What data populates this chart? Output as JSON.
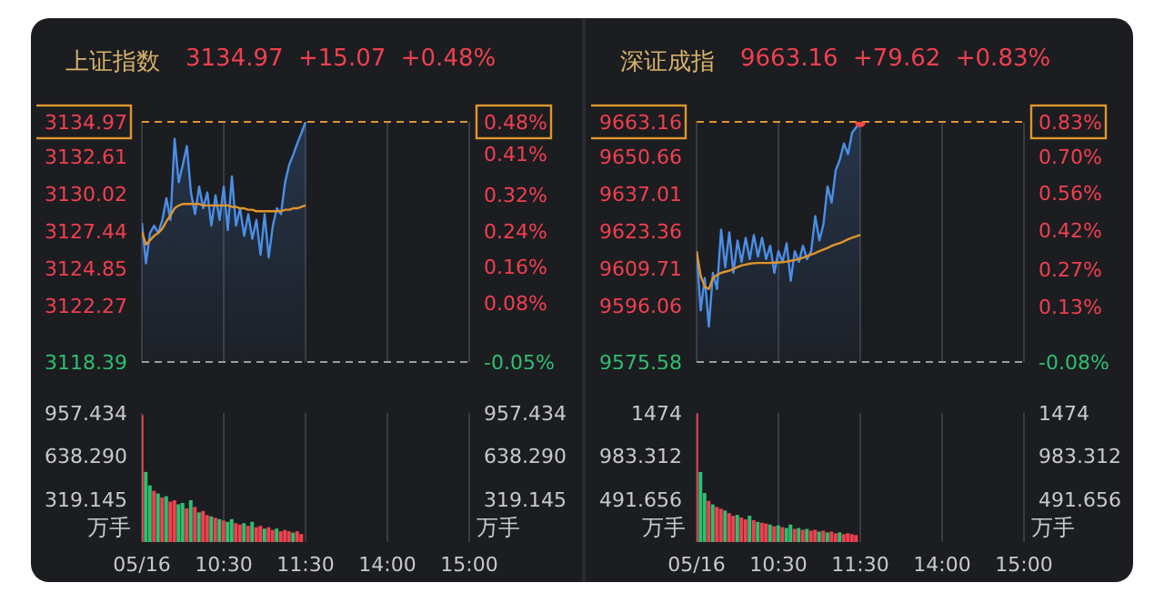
{
  "chart_data": [
    {
      "type": "line",
      "title": "上证指数",
      "subtitle": "3134.97  +15.07  +0.48%",
      "tick_labels": "y",
      "grid": "x",
      "categories": [
        "05/16",
        null,
        null,
        null,
        null,
        null,
        null,
        null,
        null,
        null,
        null,
        null,
        null,
        null,
        null,
        null,
        null,
        null,
        null,
        null,
        "10:30",
        null,
        null,
        null,
        null,
        null,
        null,
        null,
        null,
        null,
        null,
        null,
        null,
        null,
        null,
        null,
        null,
        null,
        null,
        null,
        "11:30",
        null,
        null,
        null,
        null,
        null,
        null,
        null,
        null,
        null,
        null,
        null,
        null,
        null,
        null,
        null,
        null,
        null,
        null,
        null,
        "14:00",
        null,
        null,
        null,
        null,
        null,
        null,
        null,
        null,
        null,
        null,
        null,
        null,
        null,
        null,
        null,
        null,
        null,
        null,
        null,
        "15:00"
      ],
      "ylim": [
        3118.39,
        3134.97
      ],
      "yticks": [
        3134.97,
        3132.61,
        3130.02,
        3127.44,
        3124.85,
        3122.27,
        3118.39
      ],
      "y2lim": [
        -0.05,
        0.48
      ],
      "y2ticks": [
        {
          "value": 0.48,
          "label": "0.48%"
        },
        {
          "value": 0.41,
          "label": "0.41%"
        },
        {
          "value": 0.32,
          "label": "0.32%"
        },
        {
          "value": 0.24,
          "label": "0.24%"
        },
        {
          "value": 0.16,
          "label": "0.16%"
        },
        {
          "value": 0.08,
          "label": "0.08%"
        },
        {
          "value": -0.05,
          "label": "-0.05%"
        }
      ],
      "ref_lines": [
        {
          "axis": "y",
          "value": 3134.97,
          "color": "#e0952e",
          "line_style": "dashed"
        },
        {
          "axis": "y",
          "value": 3118.39,
          "color": "#9a9ca3",
          "line_style": "dashed"
        }
      ],
      "series": [
        {
          "type": "area",
          "color": "#4a8fe7",
          "values": [
            3128.0,
            3125.2,
            3127.3,
            3127.8,
            3127.3,
            3128.2,
            3129.7,
            3128.2,
            3133.8,
            3130.8,
            3132.0,
            3133.3,
            3130.1,
            3128.6,
            3130.5,
            3129.0,
            3130.1,
            3127.8,
            3129.9,
            3128.2,
            3130.5,
            3127.5,
            3131.2,
            3127.8,
            3129.0,
            3127.1,
            3128.6,
            3126.9,
            3128.2,
            3125.8,
            3128.6,
            3125.6,
            3127.8,
            3129.0,
            3128.6,
            3130.8,
            3132.0,
            3132.7,
            3133.5,
            3134.2,
            3134.97,
            null,
            null,
            null,
            null,
            null,
            null,
            null,
            null,
            null,
            null,
            null,
            null,
            null,
            null,
            null,
            null,
            null,
            null,
            null,
            null,
            null,
            null,
            null,
            null,
            null,
            null,
            null,
            null,
            null,
            null,
            null,
            null,
            null,
            null,
            null,
            null,
            null,
            null,
            null,
            null
          ]
        },
        {
          "type": "line",
          "color": "#e0952e",
          "values": [
            3127.4,
            3126.5,
            3126.8,
            3127.1,
            3127.3,
            3127.6,
            3128.1,
            3128.5,
            3129.0,
            3129.2,
            3129.3,
            3129.3,
            3129.3,
            3129.3,
            3129.3,
            3129.2,
            3129.2,
            3129.2,
            3129.2,
            3129.2,
            3129.2,
            3129.2,
            3129.1,
            3129.1,
            3129.0,
            3129.0,
            3128.9,
            3128.9,
            3128.8,
            3128.8,
            3128.8,
            3128.8,
            3128.8,
            3128.8,
            3128.8,
            3128.9,
            3128.9,
            3129.0,
            3129.0,
            3129.1,
            3129.2,
            null,
            null,
            null,
            null,
            null,
            null,
            null,
            null,
            null,
            null,
            null,
            null,
            null,
            null,
            null,
            null,
            null,
            null,
            null,
            null,
            null,
            null,
            null,
            null,
            null,
            null,
            null,
            null,
            null,
            null,
            null,
            null,
            null,
            null,
            null,
            null,
            null,
            null,
            null,
            null
          ]
        }
      ]
    },
    {
      "type": "bar",
      "ylabel": "万手",
      "y2label": "万手",
      "grid": "x",
      "categories": [
        "05/16",
        null,
        null,
        null,
        null,
        null,
        null,
        null,
        null,
        null,
        null,
        null,
        null,
        null,
        null,
        null,
        null,
        null,
        null,
        null,
        "10:30",
        null,
        null,
        null,
        null,
        null,
        null,
        null,
        null,
        null,
        null,
        null,
        null,
        null,
        null,
        null,
        null,
        null,
        null,
        null,
        "11:30",
        null,
        null,
        null,
        null,
        null,
        null,
        null,
        null,
        null,
        null,
        null,
        null,
        null,
        null,
        null,
        null,
        null,
        null,
        null,
        "14:00",
        null,
        null,
        null,
        null,
        null,
        null,
        null,
        null,
        null,
        null,
        null,
        null,
        null,
        null,
        null,
        null,
        null,
        null,
        null,
        "15:00"
      ],
      "ylim": [
        0,
        957.434
      ],
      "yticks": [
        957.434,
        {
          "value": 638.29,
          "label": "638.290"
        },
        319.145
      ],
      "y2lim": [
        0,
        957.434
      ],
      "y2ticks": [
        957.434,
        {
          "value": 638.29,
          "label": "638.290"
        },
        319.145
      ],
      "values": [
        940,
        520,
        420,
        380,
        360,
        330,
        340,
        300,
        310,
        280,
        290,
        250,
        310,
        260,
        220,
        230,
        200,
        190,
        180,
        170,
        160,
        150,
        170,
        140,
        130,
        140,
        120,
        150,
        110,
        120,
        100,
        110,
        90,
        100,
        80,
        90,
        80,
        70,
        80,
        60,
        null,
        null,
        null,
        null,
        null,
        null,
        null,
        null,
        null,
        null,
        null,
        null,
        null,
        null,
        null,
        null,
        null,
        null,
        null,
        null,
        null,
        null,
        null,
        null,
        null,
        null,
        null,
        null,
        null,
        null,
        null,
        null,
        null,
        null,
        null,
        null,
        null,
        null,
        null,
        null,
        null
      ],
      "colors": [
        "#f0404f",
        "#2fbf71",
        "#2fbf71",
        "#f0404f",
        "#2fbf71",
        "#f0404f",
        "#2fbf71",
        "#f0404f",
        "#f0404f",
        "#2fbf71",
        "#2fbf71",
        "#f0404f",
        "#2fbf71",
        "#f0404f",
        "#2fbf71",
        "#f0404f",
        "#f0404f",
        "#2fbf71",
        "#f0404f",
        "#2fbf71",
        "#f0404f",
        "#2fbf71",
        "#2fbf71",
        "#f0404f",
        "#f0404f",
        "#2fbf71",
        "#f0404f",
        "#2fbf71",
        "#f0404f",
        "#f0404f",
        "#2fbf71",
        "#f0404f",
        "#f0404f",
        "#2fbf71",
        "#f0404f",
        "#f0404f",
        "#f0404f",
        "#2fbf71",
        "#f0404f",
        "#f0404f",
        null,
        null,
        null,
        null,
        null,
        null,
        null,
        null,
        null,
        null,
        null,
        null,
        null,
        null,
        null,
        null,
        null,
        null,
        null,
        null,
        null,
        null,
        null,
        null,
        null,
        null,
        null,
        null,
        null,
        null,
        null,
        null,
        null,
        null,
        null,
        null,
        null,
        null,
        null,
        null,
        null
      ]
    },
    {
      "type": "line",
      "title": "深证成指",
      "subtitle": "9663.16  +79.62  +0.83%",
      "tick_labels": "y",
      "grid": "x",
      "categories": [
        "05/16",
        null,
        null,
        null,
        null,
        null,
        null,
        null,
        null,
        null,
        null,
        null,
        null,
        null,
        null,
        null,
        null,
        null,
        null,
        null,
        "10:30",
        null,
        null,
        null,
        null,
        null,
        null,
        null,
        null,
        null,
        null,
        null,
        null,
        null,
        null,
        null,
        null,
        null,
        null,
        null,
        "11:30",
        null,
        null,
        null,
        null,
        null,
        null,
        null,
        null,
        null,
        null,
        null,
        null,
        null,
        null,
        null,
        null,
        null,
        null,
        null,
        "14:00",
        null,
        null,
        null,
        null,
        null,
        null,
        null,
        null,
        null,
        null,
        null,
        null,
        null,
        null,
        null,
        null,
        null,
        null,
        null,
        "15:00"
      ],
      "ylim": [
        9575.58,
        9663.16
      ],
      "yticks": [
        9663.16,
        9650.66,
        9637.01,
        9623.36,
        9609.71,
        9596.06,
        9575.58
      ],
      "y2lim": [
        -0.08,
        0.83
      ],
      "y2ticks": [
        {
          "value": 0.83,
          "label": "0.83%"
        },
        {
          "value": 0.7,
          "label": "0.70%"
        },
        {
          "value": 0.56,
          "label": "0.56%"
        },
        {
          "value": 0.42,
          "label": "0.42%"
        },
        {
          "value": 0.27,
          "label": "0.27%"
        },
        {
          "value": 0.13,
          "label": "0.13%"
        },
        {
          "value": -0.08,
          "label": "-0.08%"
        }
      ],
      "ref_lines": [
        {
          "axis": "y",
          "value": 9663.16,
          "color": "#e0952e",
          "line_style": "dashed"
        },
        {
          "axis": "y",
          "value": 9575.58,
          "color": "#9a9ca3",
          "line_style": "dashed"
        }
      ],
      "series": [
        {
          "type": "area",
          "color": "#4a8fe7",
          "values": [
            9616.0,
            9594.4,
            9606.2,
            9588.5,
            9608.1,
            9602.2,
            9623.9,
            9610.1,
            9622.9,
            9608.1,
            9619.9,
            9612.1,
            9620.9,
            9613.1,
            9621.9,
            9614.0,
            9620.9,
            9613.1,
            9618.0,
            9608.1,
            9616.0,
            9612.1,
            9618.9,
            9605.2,
            9616.0,
            9612.1,
            9618.0,
            9613.1,
            9616.0,
            9628.8,
            9619.9,
            9625.8,
            9639.6,
            9633.7,
            9645.5,
            9649.4,
            9655.3,
            9651.4,
            9659.2,
            9661.2,
            9663.16,
            null,
            null,
            null,
            null,
            null,
            null,
            null,
            null,
            null,
            null,
            null,
            null,
            null,
            null,
            null,
            null,
            null,
            null,
            null,
            null,
            null,
            null,
            null,
            null,
            null,
            null,
            null,
            null,
            null,
            null,
            null,
            null,
            null,
            null,
            null,
            null,
            null,
            null,
            null,
            null
          ]
        },
        {
          "type": "line",
          "color": "#e0952e",
          "values": [
            9616.0,
            9607.0,
            9603.0,
            9602.2,
            9606.2,
            9607.3,
            9608.1,
            9608.5,
            9608.9,
            9609.5,
            9610.2,
            9610.8,
            9611.1,
            9611.4,
            9611.6,
            9611.7,
            9611.7,
            9611.7,
            9611.7,
            9611.8,
            9611.9,
            9612.0,
            9612.2,
            9612.5,
            9612.8,
            9613.1,
            9613.6,
            9614.2,
            9614.8,
            9615.3,
            9616.0,
            9616.6,
            9617.2,
            9617.9,
            9618.5,
            9618.9,
            9619.6,
            9620.3,
            9620.9,
            9621.4,
            9621.9,
            null,
            null,
            null,
            null,
            null,
            null,
            null,
            null,
            null,
            null,
            null,
            null,
            null,
            null,
            null,
            null,
            null,
            null,
            null,
            null,
            null,
            null,
            null,
            null,
            null,
            null,
            null,
            null,
            null,
            null,
            null,
            null,
            null,
            null,
            null,
            null,
            null,
            null,
            null,
            null
          ]
        },
        {
          "type": "scatter",
          "color": "#f04848",
          "x": [
            "11:30"
          ],
          "values": [
            9663.16
          ]
        }
      ]
    },
    {
      "type": "bar",
      "ylabel": "万手",
      "y2label": "万手",
      "grid": "x",
      "categories": [
        "05/16",
        null,
        null,
        null,
        null,
        null,
        null,
        null,
        null,
        null,
        null,
        null,
        null,
        null,
        null,
        null,
        null,
        null,
        null,
        null,
        "10:30",
        null,
        null,
        null,
        null,
        null,
        null,
        null,
        null,
        null,
        null,
        null,
        null,
        null,
        null,
        null,
        null,
        null,
        null,
        null,
        "11:30",
        null,
        null,
        null,
        null,
        null,
        null,
        null,
        null,
        null,
        null,
        null,
        null,
        null,
        null,
        null,
        null,
        null,
        null,
        null,
        "14:00",
        null,
        null,
        null,
        null,
        null,
        null,
        null,
        null,
        null,
        null,
        null,
        null,
        null,
        null,
        null,
        null,
        null,
        null,
        null,
        "15:00"
      ],
      "ylim": [
        0,
        1474
      ],
      "yticks": [
        1474,
        983.312,
        491.656
      ],
      "y2lim": [
        0,
        1474
      ],
      "y2ticks": [
        1474,
        983.312,
        491.656
      ],
      "values": [
        1470,
        800,
        560,
        470,
        430,
        400,
        380,
        360,
        330,
        300,
        310,
        280,
        260,
        300,
        250,
        230,
        220,
        210,
        200,
        180,
        190,
        170,
        160,
        200,
        150,
        160,
        140,
        150,
        130,
        140,
        120,
        130,
        110,
        120,
        100,
        110,
        90,
        100,
        90,
        80,
        null,
        null,
        null,
        null,
        null,
        null,
        null,
        null,
        null,
        null,
        null,
        null,
        null,
        null,
        null,
        null,
        null,
        null,
        null,
        null,
        null,
        null,
        null,
        null,
        null,
        null,
        null,
        null,
        null,
        null,
        null,
        null,
        null,
        null,
        null,
        null,
        null,
        null,
        null,
        null,
        null
      ],
      "colors": [
        "#f0404f",
        "#2fbf71",
        "#2fbf71",
        "#f0404f",
        "#2fbf71",
        "#f0404f",
        "#f0404f",
        "#2fbf71",
        "#f0404f",
        "#f0404f",
        "#2fbf71",
        "#f0404f",
        "#f0404f",
        "#2fbf71",
        "#f0404f",
        "#2fbf71",
        "#f0404f",
        "#f0404f",
        "#2fbf71",
        "#f0404f",
        "#2fbf71",
        "#f0404f",
        "#2fbf71",
        "#2fbf71",
        "#f0404f",
        "#2fbf71",
        "#f0404f",
        "#2fbf71",
        "#f0404f",
        "#f0404f",
        "#2fbf71",
        "#f0404f",
        "#2fbf71",
        "#f0404f",
        "#f0404f",
        "#2fbf71",
        "#f0404f",
        "#f0404f",
        "#f0404f",
        "#f0404f",
        null,
        null,
        null,
        null,
        null,
        null,
        null,
        null,
        null,
        null,
        null,
        null,
        null,
        null,
        null,
        null,
        null,
        null,
        null,
        null,
        null,
        null,
        null,
        null,
        null,
        null,
        null,
        null,
        null,
        null,
        null,
        null,
        null,
        null,
        null,
        null,
        null,
        null,
        null,
        null,
        null
      ]
    }
  ]
}
